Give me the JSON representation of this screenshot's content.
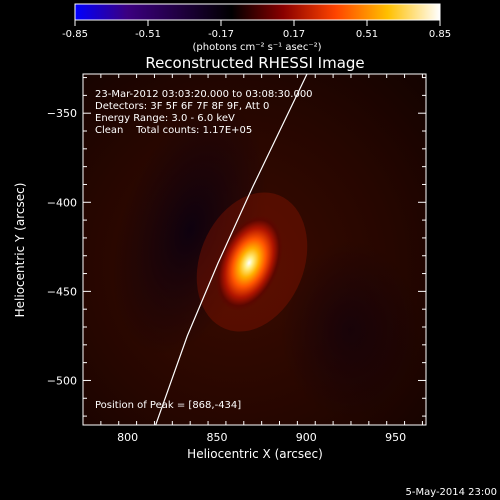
{
  "chart_data": {
    "type": "heatmap",
    "title": "Reconstructed RHESSI Image",
    "xlabel": "Heliocentric X (arcsec)",
    "ylabel": "Heliocentric Y (arcsec)",
    "xlim": [
      775,
      967
    ],
    "ylim": [
      -525,
      -328
    ],
    "x_ticks": [
      800,
      850,
      900,
      950
    ],
    "y_ticks": [
      -350,
      -400,
      -450,
      -500
    ],
    "colorbar": {
      "label": "(photons cm⁻² s⁻¹ asec⁻²)",
      "ticks": [
        "-0.85",
        "-0.51",
        "-0.17",
        "0.17",
        "0.51",
        "0.85"
      ],
      "range": [
        -0.85,
        0.85
      ],
      "colors": [
        "#0000ff",
        "#3b0080",
        "#200040",
        "#000000",
        "#8a0000",
        "#ff4400",
        "#ffc000",
        "#ffffff"
      ]
    },
    "annotations": [
      "23-Mar-2012 03:03:20.000 to 03:08:30.000",
      "Detectors: 3F 5F 6F 7F 8F 9F, Att 0",
      "Energy Range: 3.0 - 6.0 keV",
      "Clean    Total counts: 1.17E+05"
    ],
    "peak_label": "Position of Peak = [868,-434]",
    "peak": {
      "x": 868,
      "y": -434,
      "value": 0.85
    },
    "limb": [
      [
        813.9,
        -530
      ],
      [
        833.4,
        -475
      ],
      [
        850.6,
        -434
      ],
      [
        869.7,
        -392
      ],
      [
        900.4,
        -328
      ]
    ],
    "date_stamp": "5-May-2014 23:00"
  }
}
